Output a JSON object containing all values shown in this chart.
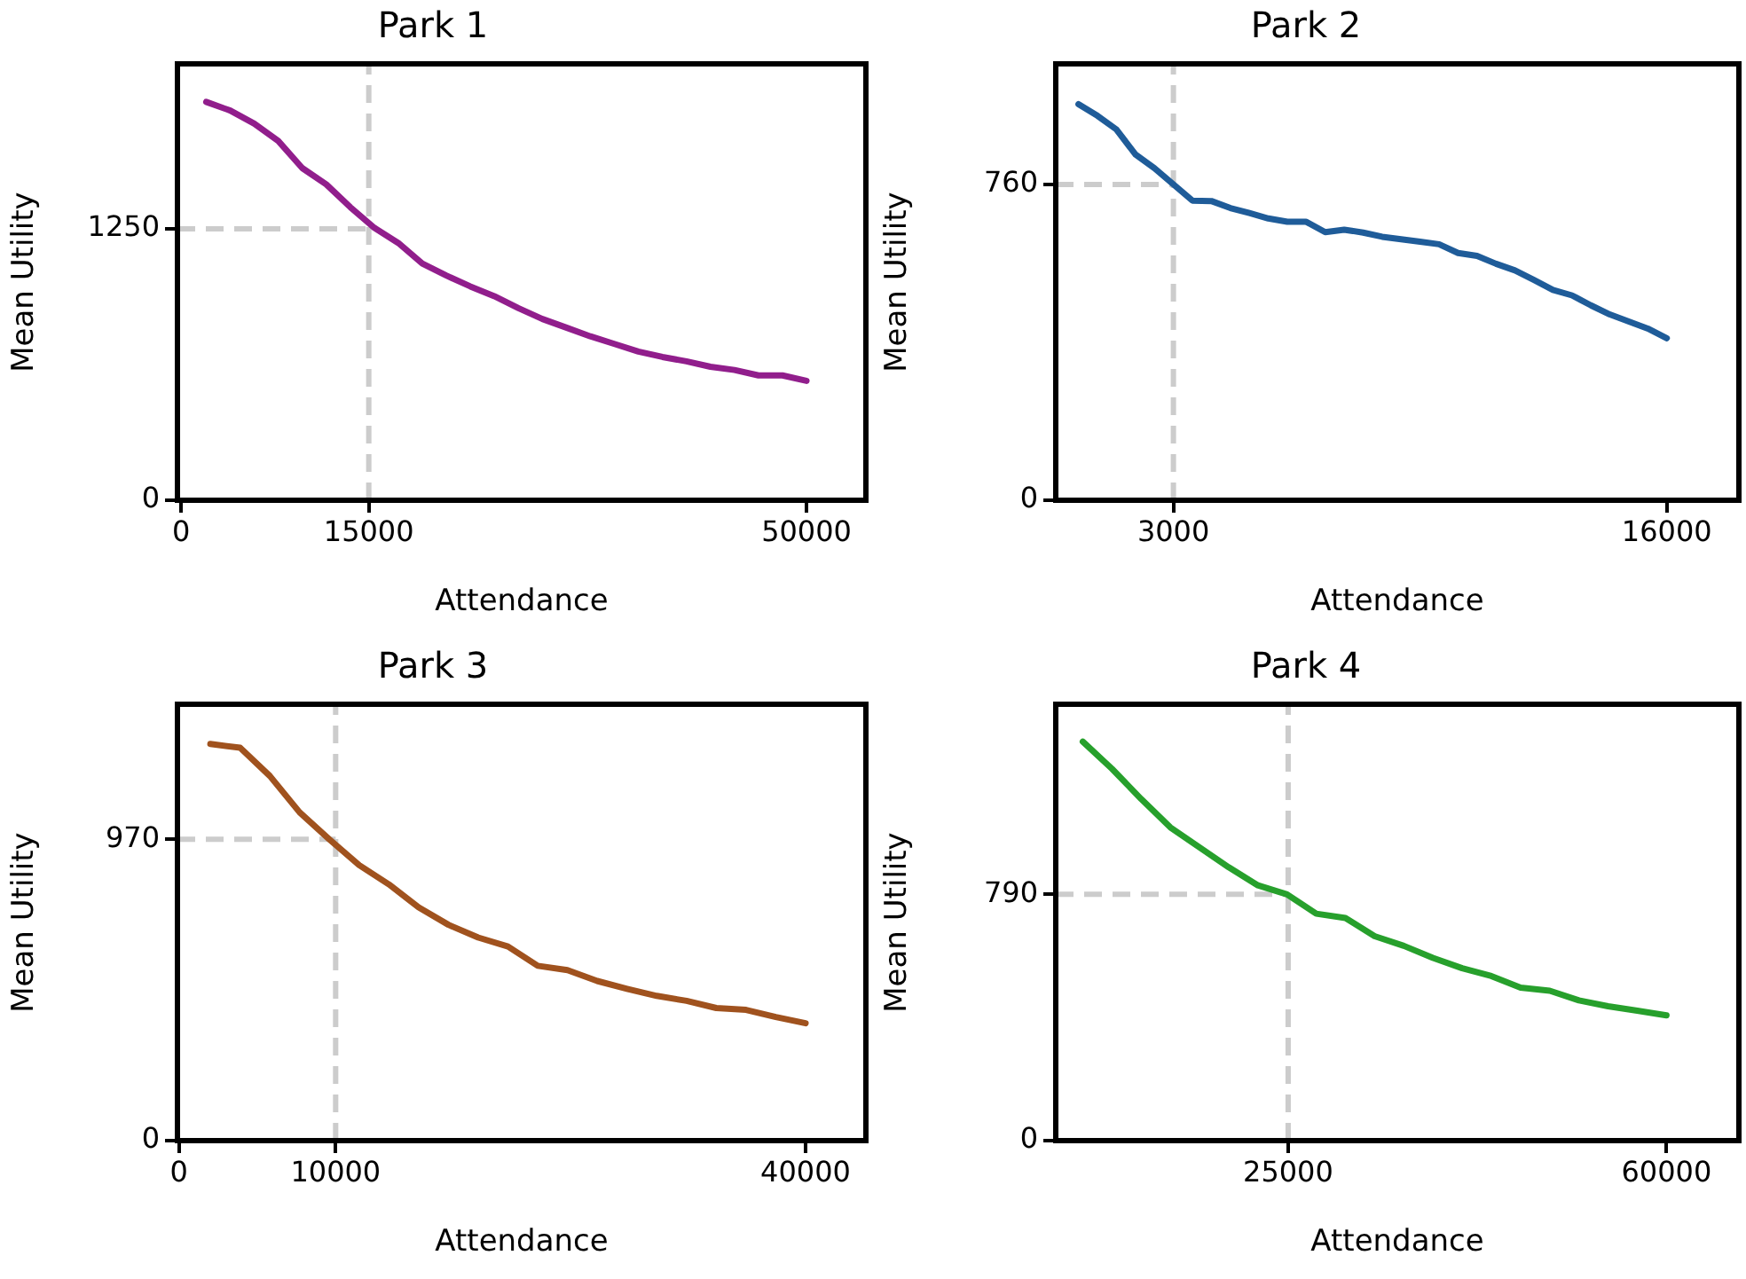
{
  "chart_data": [
    {
      "type": "line",
      "title": "Park 1",
      "xlabel": "Attendance",
      "ylabel": "Mean Utility",
      "xlim": [
        -300,
        54750
      ],
      "xticks": [
        0,
        15000,
        50000
      ],
      "ylim": [
        0,
        2010
      ],
      "yticks": [
        0,
        1250
      ],
      "x": [
        2000,
        3920,
        5840,
        7760,
        9680,
        11600,
        13520,
        15440,
        17360,
        19280,
        21200,
        23120,
        25040,
        26960,
        28880,
        30800,
        32720,
        34640,
        36560,
        38480,
        40400,
        42320,
        44240,
        46160,
        48080,
        50000
      ],
      "series": [
        {
          "color": "#911e8c",
          "values": [
            1835,
            1795,
            1735,
            1655,
            1530,
            1455,
            1350,
            1255,
            1185,
            1090,
            1035,
            985,
            940,
            885,
            835,
            795,
            755,
            720,
            685,
            660,
            640,
            615,
            600,
            575,
            575,
            550
          ]
        }
      ],
      "ref_lines": [
        {
          "axis": "x",
          "value": 15000,
          "color": "#cccccc",
          "line_style": "dashed"
        },
        {
          "axis": "y",
          "value": 1250,
          "color": "#cccccc",
          "line_style": "dashed"
        }
      ]
    },
    {
      "type": "line",
      "title": "Park 2",
      "xlabel": "Attendance",
      "ylabel": "Mean Utility",
      "xlim": [
        -100,
        17900
      ],
      "xticks": [
        3000,
        16000
      ],
      "ylim": [
        0,
        1050
      ],
      "yticks": [
        0,
        760
      ],
      "x": [
        500,
        1000,
        1500,
        2000,
        2500,
        3000,
        3500,
        4000,
        4500,
        5000,
        5500,
        6000,
        6500,
        7000,
        7500,
        8000,
        8500,
        9000,
        9500,
        10000,
        10500,
        11000,
        11500,
        12000,
        12500,
        13000,
        13500,
        14000,
        14500,
        15000,
        15500,
        16000
      ],
      "series": [
        {
          "color": "#1f5c99",
          "values": [
            953,
            925,
            892,
            832,
            799,
            760,
            721,
            720,
            703,
            691,
            678,
            670,
            670,
            645,
            651,
            644,
            634,
            628,
            622,
            616,
            595,
            588,
            569,
            553,
            530,
            506,
            493,
            469,
            447,
            430,
            413,
            390
          ]
        }
      ],
      "ref_lines": [
        {
          "axis": "x",
          "value": 3000,
          "color": "#cccccc",
          "line_style": "dashed"
        },
        {
          "axis": "y",
          "value": 760,
          "color": "#cccccc",
          "line_style": "dashed"
        }
      ]
    },
    {
      "type": "line",
      "title": "Park 3",
      "xlabel": "Attendance",
      "ylabel": "Mean Utility",
      "xlim": [
        -100,
        43850
      ],
      "xticks": [
        0,
        10000,
        40000
      ],
      "ylim": [
        0,
        1405
      ],
      "yticks": [
        0,
        970
      ],
      "x": [
        2000,
        3900,
        5800,
        7700,
        9600,
        11500,
        13400,
        15300,
        17200,
        19100,
        21000,
        22900,
        24800,
        26700,
        28600,
        30500,
        32400,
        34300,
        36200,
        38100,
        40000
      ],
      "series": [
        {
          "color": "#a0521e",
          "values": [
            1277,
            1265,
            1174,
            1057,
            970,
            887,
            825,
            751,
            695,
            654,
            625,
            563,
            549,
            514,
            489,
            466,
            450,
            427,
            421,
            398,
            378
          ]
        }
      ],
      "ref_lines": [
        {
          "axis": "x",
          "value": 10000,
          "color": "#cccccc",
          "line_style": "dashed"
        },
        {
          "axis": "y",
          "value": 970,
          "color": "#cccccc",
          "line_style": "dashed"
        }
      ]
    },
    {
      "type": "line",
      "title": "Park 4",
      "xlabel": "Attendance",
      "ylabel": "Mean Utility",
      "xlim": [
        3500,
        66700
      ],
      "xticks": [
        25000,
        60000
      ],
      "ylim": [
        0,
        1400
      ],
      "yticks": [
        0,
        790
      ],
      "x": [
        6000,
        8700,
        11400,
        14100,
        16800,
        19500,
        22200,
        24900,
        27600,
        30300,
        33000,
        35700,
        38400,
        41100,
        43800,
        46500,
        49200,
        51900,
        54600,
        57300,
        60000
      ],
      "series": [
        {
          "color": "#27a02c",
          "values": [
            1280,
            1193,
            1096,
            1005,
            941,
            877,
            819,
            790,
            728,
            714,
            656,
            625,
            586,
            553,
            528,
            491,
            481,
            450,
            431,
            417,
            402
          ]
        }
      ],
      "ref_lines": [
        {
          "axis": "x",
          "value": 25000,
          "color": "#cccccc",
          "line_style": "dashed"
        },
        {
          "axis": "y",
          "value": 790,
          "color": "#cccccc",
          "line_style": "dashed"
        }
      ]
    }
  ]
}
